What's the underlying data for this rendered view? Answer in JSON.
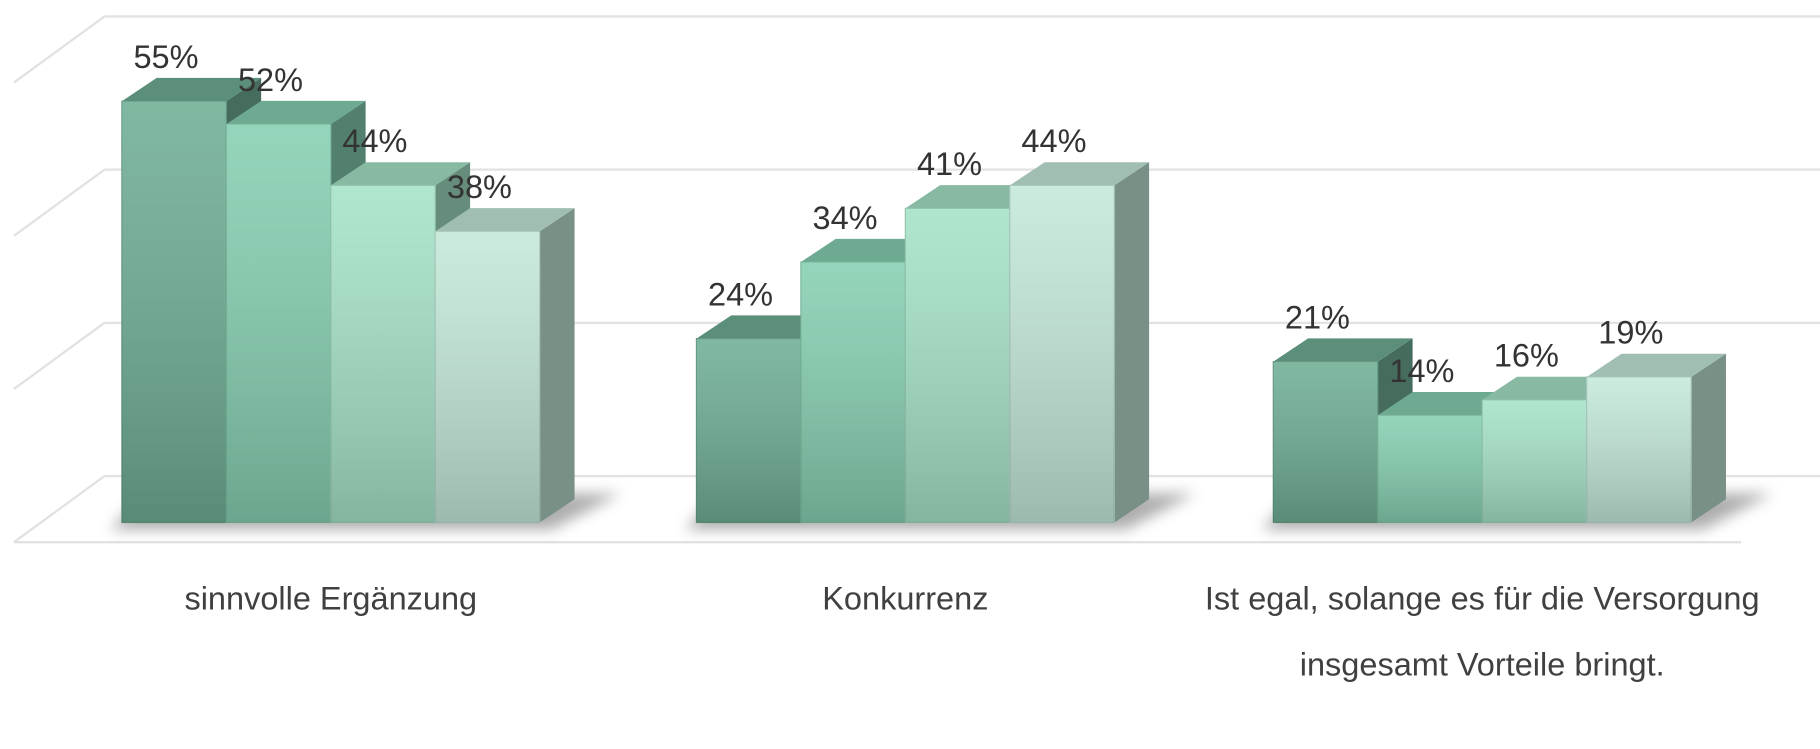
{
  "chart_data": {
    "type": "bar3d",
    "categories": [
      "sinnvolle Ergänzung",
      "Konkurrenz",
      "Ist egal, solange es für die Versorgung insgesamt Vorteile bringt."
    ],
    "series": [
      {
        "color": "#6fae94",
        "values": [
          55,
          24,
          21
        ],
        "value_labels": [
          "55%",
          "24%",
          "21%"
        ]
      },
      {
        "color": "#86cfb1",
        "values": [
          52,
          34,
          14
        ],
        "value_labels": [
          "52%",
          "34%",
          "14%"
        ]
      },
      {
        "color": "#a5e2c7",
        "values": [
          44,
          41,
          16
        ],
        "value_labels": [
          "44%",
          "41%",
          "16%"
        ]
      },
      {
        "color": "#c3e8d8",
        "values": [
          38,
          44,
          19
        ],
        "value_labels": [
          "38%",
          "44%",
          "19%"
        ]
      }
    ],
    "ylim": [
      0,
      60
    ],
    "yticks": [
      0,
      20,
      40,
      60
    ],
    "grid": true
  }
}
